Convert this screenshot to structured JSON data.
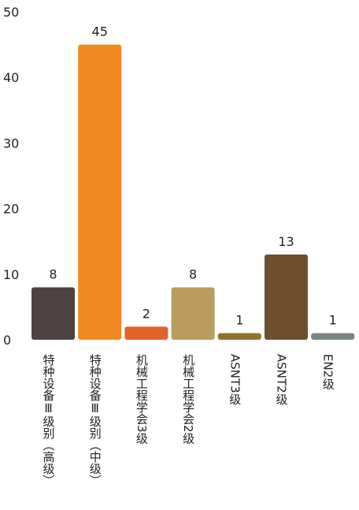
{
  "chart_data": {
    "type": "bar",
    "categories": [
      "特种设备Ⅲ级别（高级）",
      "特种设备Ⅲ级别（中级）",
      "机械工程学会3级",
      "机械工程学会2级",
      "ASNT3级",
      "ASNT2级",
      "EN2级"
    ],
    "values": [
      8,
      45,
      2,
      8,
      1,
      13,
      1
    ],
    "colors": [
      "#4d4144",
      "#f0891f",
      "#e2622a",
      "#b89d5e",
      "#8f7328",
      "#6b4f2e",
      "#7c8585"
    ],
    "yticks": [
      0,
      10,
      20,
      30,
      40,
      50
    ],
    "ylim": [
      0,
      50
    ],
    "grid": false,
    "legend": "none",
    "title": "",
    "xlabel": "",
    "ylabel": ""
  }
}
